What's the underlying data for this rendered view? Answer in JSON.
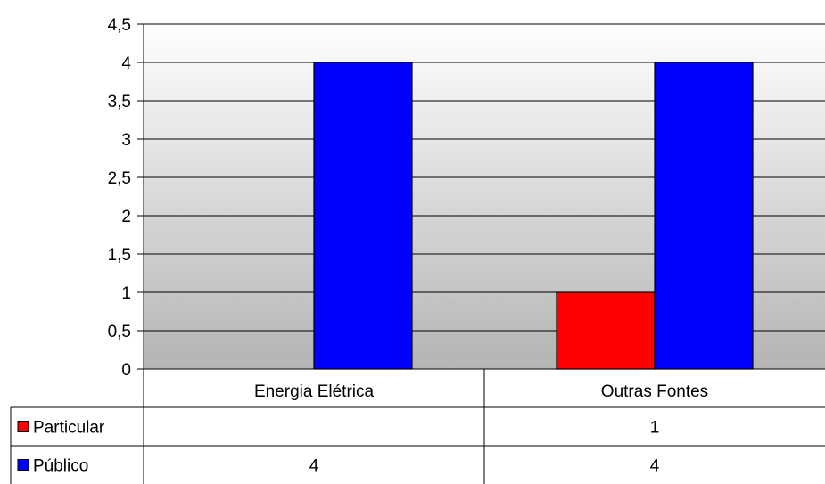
{
  "chart_data": {
    "type": "bar",
    "title": "",
    "xlabel": "",
    "ylabel": "",
    "ylim": [
      0,
      4.5
    ],
    "yticks": [
      "0",
      "0,5",
      "1",
      "1,5",
      "2",
      "2,5",
      "3",
      "3,5",
      "4",
      "4,5"
    ],
    "grid": true,
    "legend": "data-table",
    "categories": [
      "Energia Elétrica",
      "Outras Fontes"
    ],
    "series": [
      {
        "name": "Particular",
        "values": [
          null,
          1
        ],
        "labels": [
          "",
          "1"
        ],
        "color": "#ff0000"
      },
      {
        "name": "Público",
        "values": [
          4,
          4
        ],
        "labels": [
          "4",
          "4"
        ],
        "color": "#0000ff"
      }
    ]
  }
}
